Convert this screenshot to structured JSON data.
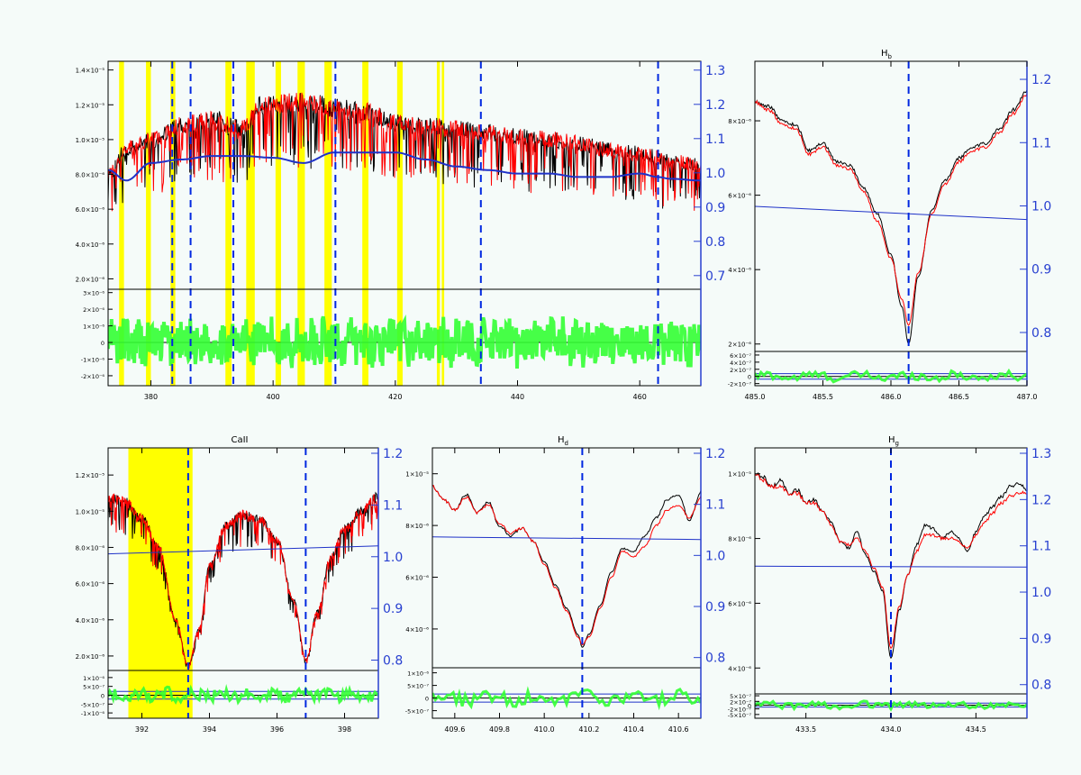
{
  "colors": {
    "background": "#f5fbf9",
    "observed": "#000000",
    "model": "#ff0000",
    "continuum": "#1f32c8",
    "residual": "#33ff33",
    "masked": "#ffff00",
    "line_marker": "#0028e0",
    "frame": "#000000",
    "right_axis": "#2840d0"
  },
  "chart_data": [
    {
      "id": "full-spectrum",
      "type": "line",
      "title": "",
      "xlabel": "",
      "ylabel": "",
      "x_ticks": [
        "380",
        "400",
        "420",
        "440",
        "460"
      ],
      "xlim": [
        373,
        470
      ],
      "y_ticks": [
        "2.0×10⁻⁶",
        "4.0×10⁻⁶",
        "6.0×10⁻⁶",
        "8.0×10⁻⁶",
        "1.0×10⁻⁵",
        "1.2×10⁻⁵",
        "1.4×10⁻⁵"
      ],
      "ylim": [
        1.4e-06,
        1.45e-05
      ],
      "y2_ticks": [
        "0.7",
        "0.8",
        "0.9",
        "1.0",
        "1.1",
        "1.2",
        "1.3"
      ],
      "y2lim": [
        0.66,
        1.31
      ],
      "residual_ticks": [
        "-2×10⁻⁶",
        "-1×10⁻⁶",
        "0",
        "1×10⁻⁶",
        "2×10⁻⁶",
        "3×10⁻⁶"
      ],
      "residual_lim": [
        -2.6e-06,
        3.2e-06
      ],
      "masked_regions": [
        [
          374.8,
          375.6
        ],
        [
          379.2,
          380.0
        ],
        [
          383.2,
          384.0
        ],
        [
          392.2,
          393.2
        ],
        [
          395.6,
          397.0
        ],
        [
          400.4,
          401.3
        ],
        [
          404.0,
          405.2
        ],
        [
          408.4,
          409.6
        ],
        [
          414.6,
          415.6
        ],
        [
          420.3,
          421.2
        ],
        [
          426.8,
          427.3
        ],
        [
          427.6,
          428.0
        ]
      ],
      "line_markers": [
        383.5,
        388.9,
        397.0,
        410.2,
        434.0,
        486.1
      ],
      "line_markers_x": [
        383.5,
        386.5,
        393.5,
        410.2,
        434.0,
        463.0
      ],
      "series": [
        {
          "role": "observed",
          "x": [
            373,
            376,
            380,
            385,
            390,
            395,
            398,
            400,
            405,
            410,
            415,
            420,
            425,
            430,
            435,
            440,
            445,
            450,
            455,
            460,
            465,
            470
          ],
          "values": [
            8e-06,
            9.5e-06,
            1e-05,
            1.08e-05,
            1.12e-05,
            1.06e-05,
            1.2e-05,
            1.2e-05,
            1.22e-05,
            1.18e-05,
            1.16e-05,
            1.1e-05,
            1.08e-05,
            1.06e-05,
            1.04e-05,
            1.02e-05,
            1e-05,
            9.8e-06,
            9.4e-06,
            9.2e-06,
            8.8e-06,
            8.5e-06
          ]
        },
        {
          "role": "continuum",
          "x": [
            373,
            376,
            380,
            385,
            390,
            395,
            400,
            405,
            410,
            415,
            420,
            425,
            430,
            435,
            440,
            445,
            450,
            455,
            460,
            463,
            465,
            470
          ],
          "values": [
            1.0,
            0.97,
            1.02,
            1.03,
            1.04,
            1.04,
            1.035,
            1.02,
            1.05,
            1.05,
            1.05,
            1.03,
            1.01,
            1.0,
            0.99,
            0.99,
            0.98,
            0.98,
            0.99,
            0.98,
            0.975,
            0.97
          ]
        }
      ]
    },
    {
      "id": "hb",
      "type": "line",
      "title": "H",
      "title_sub": "b",
      "x_ticks": [
        "485.0",
        "485.5",
        "486.0",
        "486.5",
        "487.0"
      ],
      "xlim": [
        485.0,
        487.0
      ],
      "y_ticks": [
        "2×10⁻⁶",
        "4×10⁻⁶",
        "6×10⁻⁶",
        "8×10⁻⁶"
      ],
      "ylim": [
        1.8e-06,
        9.6e-06
      ],
      "y2_ticks": [
        "0.8",
        "0.9",
        "1.0",
        "1.1",
        "1.2"
      ],
      "y2lim": [
        0.78,
        1.22
      ],
      "residual_ticks": [
        "-2×10⁻⁷",
        "0",
        "2×10⁻⁷",
        "4×10⁻⁷",
        "6×10⁻⁷"
      ],
      "residual_lim": [
        -2.6e-07,
        7e-07
      ],
      "line_marker": 486.13,
      "continuum": [
        1.0,
        0.98
      ],
      "series": [
        {
          "role": "observed",
          "x": [
            485.0,
            485.1,
            485.2,
            485.3,
            485.4,
            485.5,
            485.6,
            485.7,
            485.8,
            485.9,
            486.0,
            486.08,
            486.13,
            486.2,
            486.3,
            486.4,
            486.5,
            486.6,
            486.7,
            486.8,
            486.9,
            487.0
          ],
          "values": [
            8.5e-06,
            8.4e-06,
            8e-06,
            7.9e-06,
            7.2e-06,
            7.4e-06,
            6.9e-06,
            6.8e-06,
            6.2e-06,
            5.5e-06,
            4.4e-06,
            3e-06,
            2e-06,
            3.8e-06,
            5.6e-06,
            6.4e-06,
            7e-06,
            7.3e-06,
            7.4e-06,
            7.8e-06,
            8.3e-06,
            8.8e-06
          ]
        },
        {
          "role": "model",
          "x": [
            485.0,
            485.1,
            485.2,
            485.3,
            485.4,
            485.5,
            485.6,
            485.7,
            485.8,
            485.9,
            486.0,
            486.08,
            486.13,
            486.2,
            486.3,
            486.4,
            486.5,
            486.6,
            486.7,
            486.8,
            486.9,
            487.0
          ],
          "values": [
            8.5e-06,
            8.3e-06,
            7.9e-06,
            7.8e-06,
            7.1e-06,
            7.3e-06,
            6.8e-06,
            6.7e-06,
            6.1e-06,
            5.3e-06,
            4.3e-06,
            3.2e-06,
            2.5e-06,
            3.9e-06,
            5.5e-06,
            6.3e-06,
            6.9e-06,
            7.2e-06,
            7.3e-06,
            7.7e-06,
            8.2e-06,
            8.7e-06
          ]
        }
      ]
    },
    {
      "id": "caii",
      "type": "line",
      "title": "CaII",
      "x_ticks": [
        "392",
        "394",
        "396",
        "398"
      ],
      "xlim": [
        391.0,
        399.0
      ],
      "y_ticks": [
        "2.0×10⁻⁶",
        "4.0×10⁻⁶",
        "6.0×10⁻⁶",
        "8.0×10⁻⁶",
        "1.0×10⁻⁵",
        "1.2×10⁻⁵"
      ],
      "ylim": [
        1.2e-06,
        1.35e-05
      ],
      "y2_ticks": [
        "0.8",
        "0.9",
        "1.0",
        "1.1",
        "1.2"
      ],
      "y2lim": [
        0.78,
        1.2
      ],
      "residual_ticks": [
        "-1×10⁻⁶",
        "-5×10⁻⁷",
        "0",
        "5×10⁻⁷",
        "1×10⁻⁶"
      ],
      "residual_lim": [
        -1.3e-06,
        1.4e-06
      ],
      "masked_regions": [
        [
          391.6,
          393.5
        ]
      ],
      "line_markers": [
        393.37,
        396.85
      ],
      "continuum": [
        1.0,
        1.015
      ],
      "series": [
        {
          "role": "observed",
          "x": [
            391.0,
            391.5,
            392.0,
            392.5,
            393.0,
            393.37,
            393.7,
            394.0,
            394.5,
            395.0,
            395.5,
            396.0,
            396.5,
            396.85,
            397.2,
            397.6,
            398.0,
            398.5,
            399.0
          ],
          "values": [
            1.08e-05,
            1.05e-05,
            9.6e-06,
            8e-06,
            4e-06,
            1.5e-06,
            3.5e-06,
            7e-06,
            9.2e-06,
            9.8e-06,
            9.5e-06,
            8.4e-06,
            5e-06,
            1.8e-06,
            4.5e-06,
            7.5e-06,
            9e-06,
            1e-05,
            1.08e-05
          ]
        }
      ]
    },
    {
      "id": "hd",
      "type": "line",
      "title": "H",
      "title_sub": "d",
      "x_ticks": [
        "409.6",
        "409.8",
        "410.0",
        "410.2",
        "410.4",
        "410.6"
      ],
      "xlim": [
        409.5,
        410.7
      ],
      "y_ticks": [
        "4×10⁻⁶",
        "6×10⁻⁶",
        "8×10⁻⁶",
        "1×10⁻⁵"
      ],
      "ylim": [
        2.5e-06,
        1.1e-05
      ],
      "y2_ticks": [
        "0.8",
        "0.9",
        "1.0",
        "1.1",
        "1.2"
      ],
      "y2lim": [
        0.78,
        1.2
      ],
      "residual_ticks": [
        "-5×10⁻⁷",
        "0",
        "5×10⁻⁷",
        "1×10⁻⁶"
      ],
      "residual_lim": [
        -8e-07,
        1.2e-06
      ],
      "line_marker": 410.17,
      "continuum": [
        1.03,
        1.025
      ],
      "series": [
        {
          "role": "observed",
          "x": [
            409.5,
            409.55,
            409.6,
            409.65,
            409.7,
            409.75,
            409.8,
            409.85,
            409.9,
            409.95,
            410.0,
            410.05,
            410.1,
            410.15,
            410.17,
            410.2,
            410.25,
            410.3,
            410.35,
            410.4,
            410.45,
            410.5,
            410.55,
            410.6,
            410.65,
            410.7
          ],
          "values": [
            9.5e-06,
            9e-06,
            8.6e-06,
            9.2e-06,
            8.5e-06,
            8.9e-06,
            8e-06,
            7.6e-06,
            7.9e-06,
            7.4e-06,
            6.6e-06,
            5.7e-06,
            4.8e-06,
            3.8e-06,
            3.3e-06,
            3.8e-06,
            4.9e-06,
            6.2e-06,
            7.1e-06,
            7e-06,
            7.6e-06,
            8.3e-06,
            9e-06,
            9.2e-06,
            8.2e-06,
            9.3e-06
          ]
        },
        {
          "role": "model",
          "x": [
            409.5,
            409.55,
            409.6,
            409.65,
            409.7,
            409.75,
            409.8,
            409.85,
            409.9,
            409.95,
            410.0,
            410.05,
            410.1,
            410.15,
            410.17,
            410.2,
            410.25,
            410.3,
            410.35,
            410.4,
            410.45,
            410.5,
            410.55,
            410.6,
            410.65,
            410.7
          ],
          "values": [
            9.5e-06,
            9e-06,
            8.6e-06,
            9.1e-06,
            8.5e-06,
            8.8e-06,
            8.1e-06,
            7.7e-06,
            7.9e-06,
            7.4e-06,
            6.5e-06,
            5.6e-06,
            4.7e-06,
            3.7e-06,
            3.4e-06,
            3.7e-06,
            4.8e-06,
            6e-06,
            7e-06,
            6.8e-06,
            7.2e-06,
            8e-06,
            8.6e-06,
            8.8e-06,
            8.3e-06,
            9.1e-06
          ]
        }
      ]
    },
    {
      "id": "hg",
      "type": "line",
      "title": "H",
      "title_sub": "g",
      "x_ticks": [
        "433.5",
        "434.0",
        "434.5"
      ],
      "xlim": [
        433.2,
        434.8
      ],
      "y_ticks": [
        "4×10⁻⁶",
        "6×10⁻⁶",
        "8×10⁻⁶",
        "1×10⁻⁵"
      ],
      "ylim": [
        3.2e-06,
        1.08e-05
      ],
      "y2_ticks": [
        "0.8",
        "0.9",
        "1.0",
        "1.1",
        "1.2",
        "1.3"
      ],
      "y2lim": [
        0.78,
        1.3
      ],
      "residual_ticks": [
        "-5×10⁻⁷",
        "-2×10⁻⁷",
        "0",
        "2×10⁻⁷",
        "5×10⁻⁷"
      ],
      "residual_lim": [
        -7e-07,
        6e-07
      ],
      "line_marker": 434.0,
      "continuum": [
        1.05,
        1.048
      ],
      "series": [
        {
          "role": "observed",
          "x": [
            433.2,
            433.25,
            433.3,
            433.35,
            433.4,
            433.45,
            433.5,
            433.55,
            433.6,
            433.65,
            433.7,
            433.75,
            433.8,
            433.85,
            433.9,
            433.95,
            434.0,
            434.05,
            434.1,
            434.15,
            434.2,
            434.25,
            434.3,
            434.35,
            434.4,
            434.45,
            434.5,
            434.55,
            434.6,
            434.65,
            434.7,
            434.75,
            434.8
          ],
          "values": [
            1e-05,
            9.9e-06,
            9.6e-06,
            9.8e-06,
            9.4e-06,
            9.5e-06,
            9.1e-06,
            9.2e-06,
            8.8e-06,
            8.5e-06,
            7.9e-06,
            7.7e-06,
            8.2e-06,
            7.5e-06,
            7e-06,
            6.4e-06,
            4.3e-06,
            5.8e-06,
            6.9e-06,
            7.8e-06,
            8.4e-06,
            8.3e-06,
            8e-06,
            8.2e-06,
            8e-06,
            7.6e-06,
            8.2e-06,
            8.7e-06,
            9e-06,
            9.3e-06,
            9.6e-06,
            9.7e-06,
            9.5e-06
          ]
        },
        {
          "role": "model",
          "x": [
            433.2,
            433.25,
            433.3,
            433.35,
            433.4,
            433.45,
            433.5,
            433.55,
            433.6,
            433.65,
            433.7,
            433.75,
            433.8,
            433.85,
            433.9,
            433.95,
            434.0,
            434.05,
            434.1,
            434.15,
            434.2,
            434.25,
            434.3,
            434.35,
            434.4,
            434.45,
            434.5,
            434.55,
            434.6,
            434.65,
            434.7,
            434.75,
            434.8
          ],
          "values": [
            1e-05,
            9.8e-06,
            9.6e-06,
            9.6e-06,
            9.4e-06,
            9.4e-06,
            9.1e-06,
            9.1e-06,
            8.8e-06,
            8.4e-06,
            7.9e-06,
            7.8e-06,
            8e-06,
            7.6e-06,
            7.1e-06,
            6.5e-06,
            4.6e-06,
            5.9e-06,
            6.9e-06,
            7.6e-06,
            8.1e-06,
            8.1e-06,
            8e-06,
            8e-06,
            7.9e-06,
            7.7e-06,
            8.1e-06,
            8.5e-06,
            8.8e-06,
            9.1e-06,
            9.3e-06,
            9.4e-06,
            9.4e-06
          ]
        }
      ]
    }
  ]
}
